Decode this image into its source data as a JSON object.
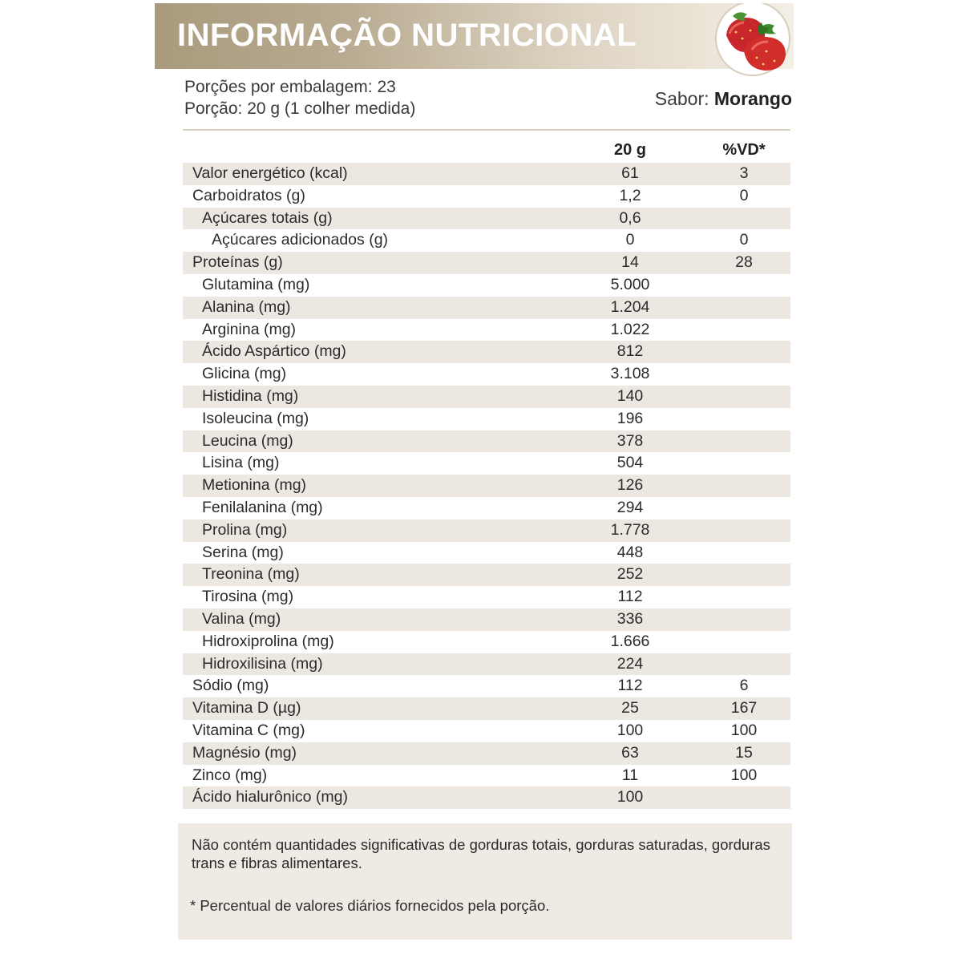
{
  "header": {
    "title": "INFORMAÇÃO NUTRICIONAL"
  },
  "info": {
    "servings": "Porções por embalagem: 23",
    "portion": "Porção: 20 g (1 colher medida)",
    "flavor_label": "Sabor:",
    "flavor_value": "Morango"
  },
  "table": {
    "col_amount": "20 g",
    "col_vd": "%VD*",
    "rows": [
      {
        "name": "Valor energético (kcal)",
        "value": "61",
        "vd": "3",
        "level": 0
      },
      {
        "name": "Carboidratos (g)",
        "value": "1,2",
        "vd": "0",
        "level": 0
      },
      {
        "name": "Açúcares totais (g)",
        "value": "0,6",
        "vd": "",
        "level": 1
      },
      {
        "name": "Açúcares adicionados (g)",
        "value": "0",
        "vd": "0",
        "level": 2
      },
      {
        "name": "Proteínas (g)",
        "value": "14",
        "vd": "28",
        "level": 0
      },
      {
        "name": "Glutamina (mg)",
        "value": "5.000",
        "vd": "",
        "level": 1
      },
      {
        "name": "Alanina (mg)",
        "value": "1.204",
        "vd": "",
        "level": 1
      },
      {
        "name": "Arginina (mg)",
        "value": "1.022",
        "vd": "",
        "level": 1
      },
      {
        "name": "Ácido Aspártico (mg)",
        "value": "812",
        "vd": "",
        "level": 1
      },
      {
        "name": "Glicina (mg)",
        "value": "3.108",
        "vd": "",
        "level": 1
      },
      {
        "name": "Histidina (mg)",
        "value": "140",
        "vd": "",
        "level": 1
      },
      {
        "name": "Isoleucina (mg)",
        "value": "196",
        "vd": "",
        "level": 1
      },
      {
        "name": "Leucina (mg)",
        "value": "378",
        "vd": "",
        "level": 1
      },
      {
        "name": "Lisina (mg)",
        "value": "504",
        "vd": "",
        "level": 1
      },
      {
        "name": "Metionina (mg)",
        "value": "126",
        "vd": "",
        "level": 1
      },
      {
        "name": "Fenilalanina (mg)",
        "value": "294",
        "vd": "",
        "level": 1
      },
      {
        "name": "Prolina (mg)",
        "value": "1.778",
        "vd": "",
        "level": 1
      },
      {
        "name": "Serina (mg)",
        "value": "448",
        "vd": "",
        "level": 1
      },
      {
        "name": "Treonina (mg)",
        "value": "252",
        "vd": "",
        "level": 1
      },
      {
        "name": "Tirosina (mg)",
        "value": "112",
        "vd": "",
        "level": 1
      },
      {
        "name": "Valina (mg)",
        "value": "336",
        "vd": "",
        "level": 1
      },
      {
        "name": "Hidroxiprolina (mg)",
        "value": "1.666",
        "vd": "",
        "level": 1
      },
      {
        "name": "Hidroxilisina (mg)",
        "value": "224",
        "vd": "",
        "level": 1
      },
      {
        "name": "Sódio (mg)",
        "value": "112",
        "vd": "6",
        "level": 0
      },
      {
        "name": "Vitamina D (µg)",
        "value": "25",
        "vd": "167",
        "level": 0
      },
      {
        "name": "Vitamina C (mg)",
        "value": "100",
        "vd": "100",
        "level": 0
      },
      {
        "name": "Magnésio (mg)",
        "value": "63",
        "vd": "15",
        "level": 0
      },
      {
        "name": "Zinco (mg)",
        "value": "11",
        "vd": "100",
        "level": 0
      },
      {
        "name": "Ácido hialurônico (mg)",
        "value": "100",
        "vd": "",
        "level": 0
      }
    ]
  },
  "footer": {
    "note1": "Não contém quantidades significativas de gorduras totais, gorduras saturadas, gorduras trans e fibras alimentares.",
    "note2": "* Percentual de valores diários fornecidos pela porção."
  },
  "colors": {
    "header_gold": "#a99a7c",
    "row_shade": "#ece7e0",
    "footer_bg": "#efebe4"
  },
  "icons": {
    "fruit": "strawberry-icon"
  }
}
